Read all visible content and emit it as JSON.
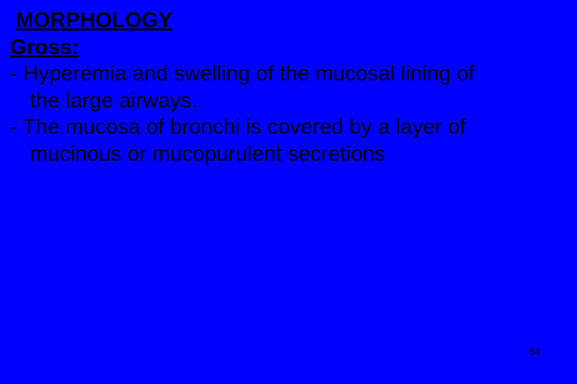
{
  "slide": {
    "background_color": "#0000ff",
    "text_color": "#000000",
    "font_family": "Arial",
    "heading_fontsize": 30,
    "body_fontsize": 30,
    "page_number_fontsize": 14,
    "title": "MORPHOLOGY",
    "subtitle": "Gross:",
    "bullets": [
      {
        "line1": "- Hyperemia and swelling of the mucosal lining of",
        "line2": "the large airways."
      },
      {
        "line1": "- The mucosa of bronchi  is  covered by a layer of",
        "line2": "mucinous or mucopurulent secretions"
      }
    ],
    "page_number": "84"
  }
}
